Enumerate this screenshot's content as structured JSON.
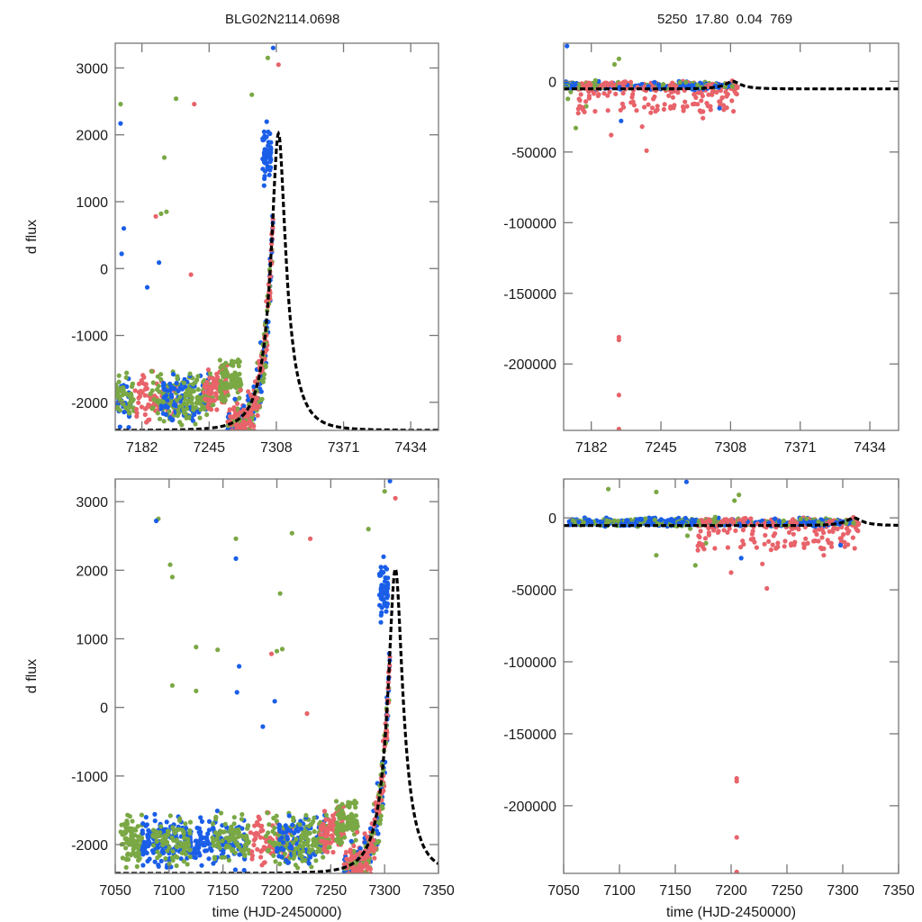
{
  "figure": {
    "title_left": "BLG02N2114.0698",
    "title_right": "5250  17.80  0.04  769"
  },
  "colors": {
    "series_green": "#7aa845",
    "series_blue": "#1a5ee8",
    "series_red": "#e8636a",
    "model": "#000000"
  },
  "chart_data": [
    {
      "type": "scatter",
      "panel": "top-left",
      "title": "BLG02N2114.0698",
      "xlabel": "",
      "ylabel": "d flux",
      "xlim": [
        7157,
        7460
      ],
      "ylim": [
        -2420,
        3370
      ],
      "xticks": [
        7182,
        7245,
        7308,
        7371,
        7434
      ],
      "yticks": [
        3000,
        2000,
        1000,
        0,
        -1000,
        -2000
      ],
      "grid": false,
      "model": {
        "name": "model fit",
        "style": "dashed",
        "t0": 7310,
        "peak": 2020,
        "base": -2420,
        "tE": 22
      }
    },
    {
      "type": "scatter",
      "panel": "top-right",
      "title": "5250  17.80  0.04  769",
      "xlabel": "",
      "ylabel": "",
      "xlim": [
        7157,
        7460
      ],
      "ylim": [
        -247000,
        27000
      ],
      "xticks": [
        7182,
        7245,
        7308,
        7371,
        7434
      ],
      "yticks": [
        0,
        -50000,
        -100000,
        -150000,
        -200000
      ],
      "grid": false,
      "outliers_red": [
        [
          7207,
          -181000
        ],
        [
          7207,
          -183000
        ],
        [
          7207,
          -222000
        ],
        [
          7207,
          -246000
        ]
      ],
      "model": {
        "name": "model fit",
        "style": "dashed",
        "t0": 7310,
        "peak": 2020,
        "base": -2420,
        "tE": 22
      }
    },
    {
      "type": "scatter",
      "panel": "bottom-left",
      "title": "",
      "xlabel": "time (HJD-2450000)",
      "ylabel": "d flux",
      "xlim": [
        7050,
        7350
      ],
      "ylim": [
        -2420,
        3330
      ],
      "xticks": [
        7050,
        7100,
        7150,
        7200,
        7250,
        7300,
        7350
      ],
      "yticks": [
        3000,
        2000,
        1000,
        0,
        -1000,
        -2000
      ],
      "grid": false,
      "model": {
        "name": "model fit",
        "style": "dashed",
        "t0": 7310,
        "peak": 2020,
        "base": -2420,
        "tE": 22
      }
    },
    {
      "type": "scatter",
      "panel": "bottom-right",
      "title": "",
      "xlabel": "time (HJD-2450000)",
      "ylabel": "",
      "xlim": [
        7050,
        7350
      ],
      "ylim": [
        -247000,
        27000
      ],
      "xticks": [
        7050,
        7100,
        7150,
        7200,
        7250,
        7300,
        7350
      ],
      "yticks": [
        0,
        -50000,
        -100000,
        -150000,
        -200000
      ],
      "grid": false,
      "outliers_red": [
        [
          7205,
          -181000
        ],
        [
          7205,
          -183000
        ],
        [
          7205,
          -222000
        ],
        [
          7205,
          -246000
        ]
      ],
      "model": {
        "name": "model fit",
        "style": "dashed",
        "t0": 7310,
        "peak": 2020,
        "base": -2420,
        "tE": 22
      }
    }
  ],
  "series": [
    {
      "name": "green",
      "color_key": "series_green"
    },
    {
      "name": "blue",
      "color_key": "series_blue"
    },
    {
      "name": "red",
      "color_key": "series_red"
    }
  ]
}
